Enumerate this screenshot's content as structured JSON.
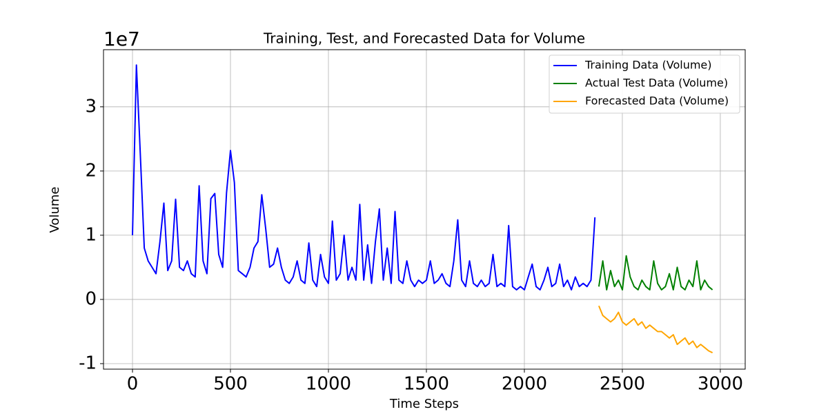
{
  "chart_data": {
    "type": "line",
    "title": "Training, Test, and Forecasted Data for Volume",
    "x_label": "Time Steps",
    "y_label": "Volume",
    "y_offset_label": "1e7",
    "x": [
      0,
      20,
      40,
      60,
      80,
      100,
      120,
      140,
      160,
      180,
      200,
      220,
      240,
      260,
      280,
      300,
      320,
      340,
      360,
      380,
      400,
      420,
      440,
      460,
      480,
      500,
      520,
      540,
      560,
      580,
      600,
      620,
      640,
      660,
      680,
      700,
      720,
      740,
      760,
      780,
      800,
      820,
      840,
      860,
      880,
      900,
      920,
      940,
      960,
      980,
      1000,
      1020,
      1040,
      1060,
      1080,
      1100,
      1120,
      1140,
      1160,
      1180,
      1200,
      1220,
      1240,
      1260,
      1280,
      1300,
      1320,
      1340,
      1360,
      1380,
      1400,
      1420,
      1440,
      1460,
      1480,
      1500,
      1520,
      1540,
      1560,
      1580,
      1600,
      1620,
      1640,
      1660,
      1680,
      1700,
      1720,
      1740,
      1760,
      1780,
      1800,
      1820,
      1840,
      1860,
      1880,
      1900,
      1920,
      1940,
      1960,
      1980,
      2000,
      2020,
      2040,
      2060,
      2080,
      2100,
      2120,
      2140,
      2160,
      2180,
      2200,
      2220,
      2240,
      2260,
      2280,
      2300,
      2320,
      2340,
      2360,
      2380,
      2400,
      2420,
      2440,
      2460,
      2480,
      2500,
      2520,
      2540,
      2560,
      2580,
      2600,
      2620,
      2640,
      2660,
      2680,
      2700,
      2720,
      2740,
      2760,
      2780,
      2800,
      2820,
      2840,
      2860,
      2880,
      2900,
      2920,
      2940,
      2960
    ],
    "series": [
      {
        "name": "Training Data (Volume)",
        "color": "#0000ff",
        "values": [
          1.0,
          3.65,
          2.25,
          0.8,
          0.6,
          0.5,
          0.4,
          0.9,
          1.5,
          0.45,
          0.6,
          1.56,
          0.5,
          0.45,
          0.6,
          0.4,
          0.35,
          1.77,
          0.6,
          0.4,
          1.57,
          1.65,
          0.7,
          0.5,
          1.66,
          2.32,
          1.82,
          0.45,
          0.4,
          0.35,
          0.5,
          0.8,
          0.9,
          1.63,
          1.1,
          0.5,
          0.55,
          0.8,
          0.5,
          0.3,
          0.25,
          0.35,
          0.6,
          0.3,
          0.25,
          0.88,
          0.3,
          0.2,
          0.7,
          0.35,
          0.25,
          1.22,
          0.3,
          0.4,
          1.0,
          0.3,
          0.5,
          0.3,
          1.48,
          0.3,
          0.85,
          0.25,
          0.9,
          1.41,
          0.3,
          0.8,
          0.25,
          1.37,
          0.3,
          0.25,
          0.6,
          0.3,
          0.2,
          0.3,
          0.25,
          0.3,
          0.6,
          0.25,
          0.3,
          0.4,
          0.25,
          0.2,
          0.6,
          1.24,
          0.3,
          0.2,
          0.6,
          0.25,
          0.2,
          0.3,
          0.2,
          0.25,
          0.7,
          0.2,
          0.25,
          0.2,
          1.15,
          0.2,
          0.15,
          0.2,
          0.15,
          0.35,
          0.55,
          0.2,
          0.15,
          0.3,
          0.5,
          0.2,
          0.25,
          0.55,
          0.2,
          0.3,
          0.15,
          0.35,
          0.2,
          0.25,
          0.2,
          0.3,
          1.28,
          null,
          null,
          null,
          null,
          null,
          null,
          null,
          null,
          null,
          null,
          null,
          null,
          null,
          null,
          null,
          null,
          null,
          null,
          null,
          null,
          null,
          null,
          null,
          null,
          null,
          null,
          null,
          null,
          null,
          null
        ]
      },
      {
        "name": "Actual Test Data (Volume)",
        "color": "#008000",
        "values": [
          null,
          null,
          null,
          null,
          null,
          null,
          null,
          null,
          null,
          null,
          null,
          null,
          null,
          null,
          null,
          null,
          null,
          null,
          null,
          null,
          null,
          null,
          null,
          null,
          null,
          null,
          null,
          null,
          null,
          null,
          null,
          null,
          null,
          null,
          null,
          null,
          null,
          null,
          null,
          null,
          null,
          null,
          null,
          null,
          null,
          null,
          null,
          null,
          null,
          null,
          null,
          null,
          null,
          null,
          null,
          null,
          null,
          null,
          null,
          null,
          null,
          null,
          null,
          null,
          null,
          null,
          null,
          null,
          null,
          null,
          null,
          null,
          null,
          null,
          null,
          null,
          null,
          null,
          null,
          null,
          null,
          null,
          null,
          null,
          null,
          null,
          null,
          null,
          null,
          null,
          null,
          null,
          null,
          null,
          null,
          null,
          null,
          null,
          null,
          null,
          null,
          null,
          null,
          null,
          null,
          null,
          null,
          null,
          null,
          null,
          null,
          null,
          null,
          null,
          null,
          null,
          null,
          null,
          null,
          0.2,
          0.6,
          0.15,
          0.45,
          0.2,
          0.3,
          0.15,
          0.68,
          0.35,
          0.2,
          0.15,
          0.3,
          0.2,
          0.15,
          0.6,
          0.25,
          0.15,
          0.2,
          0.4,
          0.15,
          0.5,
          0.2,
          0.15,
          0.3,
          0.2,
          0.6,
          0.15,
          0.3,
          0.2,
          0.15
        ]
      },
      {
        "name": "Forecasted Data (Volume)",
        "color": "#ffa500",
        "values": [
          null,
          null,
          null,
          null,
          null,
          null,
          null,
          null,
          null,
          null,
          null,
          null,
          null,
          null,
          null,
          null,
          null,
          null,
          null,
          null,
          null,
          null,
          null,
          null,
          null,
          null,
          null,
          null,
          null,
          null,
          null,
          null,
          null,
          null,
          null,
          null,
          null,
          null,
          null,
          null,
          null,
          null,
          null,
          null,
          null,
          null,
          null,
          null,
          null,
          null,
          null,
          null,
          null,
          null,
          null,
          null,
          null,
          null,
          null,
          null,
          null,
          null,
          null,
          null,
          null,
          null,
          null,
          null,
          null,
          null,
          null,
          null,
          null,
          null,
          null,
          null,
          null,
          null,
          null,
          null,
          null,
          null,
          null,
          null,
          null,
          null,
          null,
          null,
          null,
          null,
          null,
          null,
          null,
          null,
          null,
          null,
          null,
          null,
          null,
          null,
          null,
          null,
          null,
          null,
          null,
          null,
          null,
          null,
          null,
          null,
          null,
          null,
          null,
          null,
          null,
          null,
          null,
          null,
          null,
          -0.1,
          -0.25,
          -0.3,
          -0.35,
          -0.3,
          -0.2,
          -0.35,
          -0.4,
          -0.35,
          -0.3,
          -0.4,
          -0.35,
          -0.45,
          -0.4,
          -0.45,
          -0.5,
          -0.5,
          -0.55,
          -0.6,
          -0.55,
          -0.7,
          -0.65,
          -0.6,
          -0.7,
          -0.65,
          -0.75,
          -0.7,
          -0.75,
          -0.8,
          -0.83
        ]
      }
    ],
    "xlim": [
      -148,
      3127
    ],
    "ylim": [
      -1.086,
      3.89
    ],
    "xticks": [
      0,
      500,
      1000,
      1500,
      2000,
      2500,
      3000
    ],
    "yticks": [
      -1,
      0,
      1,
      2,
      3
    ],
    "grid": true,
    "legend": "upper-right"
  }
}
